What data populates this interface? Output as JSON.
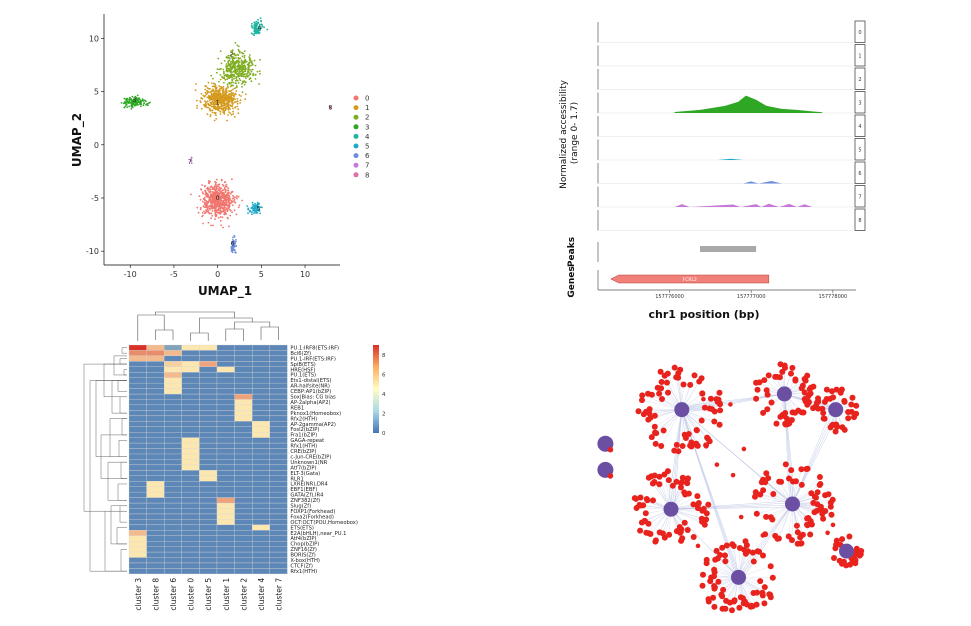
{
  "chart_data": [
    {
      "type": "scatter",
      "panel": "umap",
      "xlabel": "UMAP_1",
      "ylabel": "UMAP_2",
      "xticks": [
        -10,
        -5,
        0,
        5,
        10
      ],
      "yticks": [
        -10,
        -5,
        0,
        5,
        10
      ],
      "xlim": [
        -13,
        14
      ],
      "ylim": [
        -11.3,
        12.3
      ],
      "legend": {
        "position": "right",
        "entries": [
          "0",
          "1",
          "2",
          "3",
          "4",
          "5",
          "6",
          "7",
          "8"
        ]
      },
      "clusters": [
        {
          "name": "0",
          "color": "#f0766f",
          "center": [
            0,
            -5.2
          ],
          "spread": [
            1.6,
            1.4
          ],
          "n": 620
        },
        {
          "name": "1",
          "color": "#d49a1d",
          "center": [
            0.3,
            4.2
          ],
          "spread": [
            1.8,
            1.2
          ],
          "n": 520
        },
        {
          "name": "2",
          "color": "#7fad22",
          "center": [
            2.2,
            7.2
          ],
          "spread": [
            1.8,
            1.3
          ],
          "n": 420
        },
        {
          "name": "3",
          "color": "#2ea824",
          "center": [
            -9.5,
            4.0
          ],
          "spread": [
            1.2,
            0.4
          ],
          "n": 150
        },
        {
          "name": "4",
          "color": "#1fb5a0",
          "center": [
            4.5,
            11.0
          ],
          "spread": [
            0.6,
            0.5
          ],
          "n": 80
        },
        {
          "name": "5",
          "color": "#1fa9c9",
          "center": [
            4.3,
            -6.0
          ],
          "spread": [
            0.7,
            0.4
          ],
          "n": 70
        },
        {
          "name": "6",
          "color": "#6c8cdc",
          "center": [
            1.8,
            -9.5
          ],
          "spread": [
            0.3,
            0.7
          ],
          "n": 55
        },
        {
          "name": "7",
          "color": "#c779d9",
          "center": [
            -3.0,
            -1.5
          ],
          "spread": [
            0.1,
            0.2
          ],
          "n": 8
        },
        {
          "name": "8",
          "color": "#e06fb0",
          "center": [
            12.9,
            3.5
          ],
          "spread": [
            0.1,
            0.1
          ],
          "n": 6
        }
      ],
      "cluster_labels": [
        {
          "name": "0",
          "at": [
            0,
            -5
          ]
        },
        {
          "name": "1",
          "at": [
            0,
            4
          ]
        },
        {
          "name": "2",
          "at": [
            1.6,
            8.5
          ]
        },
        {
          "name": "3",
          "at": [
            -9.5,
            4.2
          ]
        },
        {
          "name": "4",
          "at": [
            4.8,
            11
          ]
        },
        {
          "name": "5",
          "at": [
            4.7,
            -6
          ]
        },
        {
          "name": "6",
          "at": [
            1.7,
            -9.3
          ]
        },
        {
          "name": "7",
          "at": [
            -3.2,
            -1.6
          ]
        },
        {
          "name": "8",
          "at": [
            12.9,
            3.5
          ]
        }
      ]
    },
    {
      "type": "area",
      "panel": "coverage",
      "ylabel": "Normalized accessibility\n(range 0- 1.7)",
      "xlabel": "chr1 position (bp)",
      "xticks": [
        "157776000",
        "157777000",
        "157778000"
      ],
      "track_labels": [
        "0",
        "1",
        "2",
        "3",
        "4",
        "5",
        "6",
        "7",
        "8"
      ],
      "peaks_label": "Peaks",
      "genes_label": "Genes",
      "gene_name": "FCRL2",
      "track_colors": [
        "#f0766f",
        "#d49a1d",
        "#7fad22",
        "#2ea824",
        "#1fb5a0",
        "#1fa9c9",
        "#6c8cdc",
        "#c779d9",
        "#e06fb0"
      ],
      "signals": [
        {
          "track": "3",
          "x": [
            0.3,
            0.4,
            0.45,
            0.5,
            0.55,
            0.58,
            0.62,
            0.66,
            0.72,
            0.78,
            0.84,
            0.88
          ],
          "y": [
            0.05,
            0.15,
            0.25,
            0.35,
            0.55,
            0.85,
            0.65,
            0.35,
            0.2,
            0.15,
            0.08,
            0.04
          ]
        },
        {
          "track": "5",
          "x": [
            0.47,
            0.52,
            0.57
          ],
          "y": [
            0.0,
            0.06,
            0.0
          ]
        },
        {
          "track": "6",
          "x": [
            0.57,
            0.6,
            0.63,
            0.68,
            0.72
          ],
          "y": [
            0.0,
            0.1,
            0.0,
            0.12,
            0.0
          ]
        },
        {
          "track": "7",
          "x": [
            0.3,
            0.33,
            0.36,
            0.53,
            0.56,
            0.62,
            0.64,
            0.67,
            0.71,
            0.75,
            0.78,
            0.81,
            0.84
          ],
          "y": [
            0.0,
            0.14,
            0.0,
            0.12,
            0.0,
            0.14,
            0.0,
            0.16,
            0.0,
            0.15,
            0.0,
            0.13,
            0.0
          ]
        }
      ],
      "peak": [
        0.4,
        0.62
      ],
      "gene": [
        0.05,
        0.67
      ]
    },
    {
      "type": "heatmap",
      "panel": "motif-heatmap",
      "columns": [
        "cluster 3",
        "cluster 8",
        "cluster 6",
        "cluster 0",
        "cluster 5",
        "cluster 1",
        "cluster 2",
        "cluster 4",
        "cluster 7"
      ],
      "rows": [
        "PU.1:IRF8(ETS:IRF)",
        "Bcl6(Zf)",
        "PU.1-IRF(ETS:IRF)",
        "SpiB(ETS)",
        "HRE(HSF)",
        "PU.1(ETS)",
        "Ets1-distal(ETS)",
        "AR-halfsite(NR)",
        "CEBP:AP1(bZIP)",
        "Sox|Bias: CG bias",
        "AP-2alpha(AP2)",
        "REB1",
        "Pknox1(Homeobox)",
        "Rfx2(HTH)",
        "AP-2gamma(AP2)",
        "Fosl2(bZIP)",
        "Fra1(bZIP)",
        "GAGA-repeat",
        "Rfx1(HTH)",
        "CRE(bZIP)",
        "c-Jun-CRE(bZIP)",
        "Unknown1(NR",
        "Atf7(bZIP)",
        "ELT-3(Gata)",
        "RLR1",
        "LXRE(NR),DR4",
        "EBF1(EBF)",
        "GATA(Zf),IR4",
        "ZNF382(Zf)",
        "Slug(Zf)",
        "FOXP1(Forkhead)",
        "Foxa2(Forkhead)",
        "OCT:OCT(POU,Homeobox)",
        "ETS(ETS)",
        "E2A(bHLH),near_PU.1",
        "Atf4(bZIP)",
        "Chop(bZIP)",
        "ZNF16(Zf)",
        "BORIS(Zf)",
        "X-box(HTH)",
        "CTCF(Zf)",
        "Rfx1(HTH)"
      ],
      "legend_ticks": [
        0,
        2,
        4,
        6,
        8
      ],
      "range": [
        0,
        9
      ],
      "colors": {
        "low": "#4475b4",
        "mid": "#fffec0",
        "high": "#d73128"
      },
      "highlights": [
        {
          "row": 0,
          "col": 0,
          "v": 9
        },
        {
          "row": 0,
          "col": 1,
          "v": 6
        },
        {
          "row": 0,
          "col": 2,
          "v": 1.5
        },
        {
          "row": 0,
          "col": 3,
          "v": 5
        },
        {
          "row": 0,
          "col": 4,
          "v": 5
        },
        {
          "row": 1,
          "col": 0,
          "v": 7
        },
        {
          "row": 1,
          "col": 1,
          "v": 7
        },
        {
          "row": 1,
          "col": 2,
          "v": 6
        },
        {
          "row": 2,
          "col": 0,
          "v": 6
        },
        {
          "row": 2,
          "col": 1,
          "v": 6
        },
        {
          "row": 3,
          "col": 2,
          "v": 5.5
        },
        {
          "row": 3,
          "col": 3,
          "v": 5
        },
        {
          "row": 3,
          "col": 4,
          "v": 6.5
        },
        {
          "row": 4,
          "col": 2,
          "v": 5
        },
        {
          "row": 4,
          "col": 3,
          "v": 5
        },
        {
          "row": 4,
          "col": 5,
          "v": 5
        },
        {
          "row": 5,
          "col": 2,
          "v": 6
        },
        {
          "row": 6,
          "col": 2,
          "v": 5
        },
        {
          "row": 7,
          "col": 2,
          "v": 5
        },
        {
          "row": 8,
          "col": 2,
          "v": 5
        },
        {
          "row": 9,
          "col": 6,
          "v": 6.5
        },
        {
          "row": 10,
          "col": 6,
          "v": 5
        },
        {
          "row": 11,
          "col": 6,
          "v": 5
        },
        {
          "row": 12,
          "col": 6,
          "v": 5
        },
        {
          "row": 13,
          "col": 6,
          "v": 5
        },
        {
          "row": 14,
          "col": 7,
          "v": 5
        },
        {
          "row": 15,
          "col": 7,
          "v": 5
        },
        {
          "row": 16,
          "col": 7,
          "v": 5
        },
        {
          "row": 17,
          "col": 3,
          "v": 5
        },
        {
          "row": 18,
          "col": 3,
          "v": 5
        },
        {
          "row": 19,
          "col": 3,
          "v": 5
        },
        {
          "row": 20,
          "col": 3,
          "v": 5
        },
        {
          "row": 21,
          "col": 3,
          "v": 5
        },
        {
          "row": 22,
          "col": 3,
          "v": 5
        },
        {
          "row": 23,
          "col": 4,
          "v": 5
        },
        {
          "row": 24,
          "col": 4,
          "v": 5
        },
        {
          "row": 25,
          "col": 1,
          "v": 5
        },
        {
          "row": 26,
          "col": 1,
          "v": 5
        },
        {
          "row": 27,
          "col": 1,
          "v": 5
        },
        {
          "row": 28,
          "col": 5,
          "v": 6.5
        },
        {
          "row": 29,
          "col": 5,
          "v": 5
        },
        {
          "row": 30,
          "col": 5,
          "v": 5
        },
        {
          "row": 31,
          "col": 5,
          "v": 5
        },
        {
          "row": 32,
          "col": 5,
          "v": 5
        },
        {
          "row": 33,
          "col": 7,
          "v": 5
        },
        {
          "row": 34,
          "col": 0,
          "v": 6
        },
        {
          "row": 35,
          "col": 0,
          "v": 5
        },
        {
          "row": 36,
          "col": 0,
          "v": 5
        },
        {
          "row": 37,
          "col": 0,
          "v": 5
        },
        {
          "row": 38,
          "col": 0,
          "v": 5
        }
      ]
    },
    {
      "type": "other",
      "panel": "network",
      "hubs": [
        {
          "center": [
            0.72,
            0.16
          ],
          "r": 0.12,
          "n": 55
        },
        {
          "center": [
            0.34,
            0.22
          ],
          "r": 0.17,
          "n": 75
        },
        {
          "center": [
            0.91,
            0.22
          ],
          "r": 0.09,
          "n": 40
        },
        {
          "center": [
            0.3,
            0.6
          ],
          "r": 0.15,
          "n": 70
        },
        {
          "center": [
            0.75,
            0.58
          ],
          "r": 0.16,
          "n": 70
        },
        {
          "center": [
            0.55,
            0.86
          ],
          "r": 0.15,
          "n": 70
        },
        {
          "center": [
            0.95,
            0.76
          ],
          "r": 0.06,
          "n": 25
        }
      ],
      "isolated_hubs": [
        [
          0.02,
          0.35
        ],
        [
          0.02,
          0.45
        ]
      ]
    }
  ]
}
